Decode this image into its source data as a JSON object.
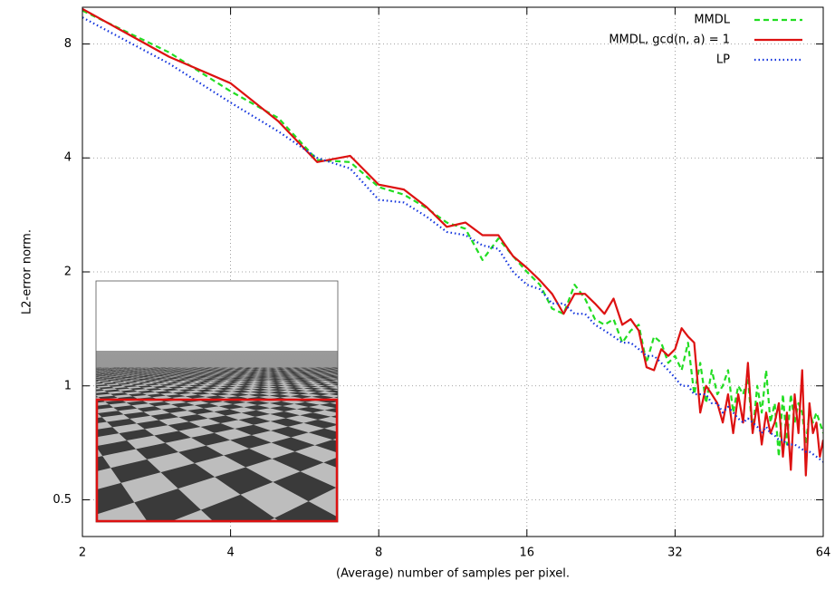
{
  "chart_data": {
    "type": "line",
    "xlabel": "(Average) number of samples per pixel.",
    "ylabel": "L2-error norm.",
    "xscale": "log",
    "yscale": "log",
    "grid": true,
    "legend": "upper right",
    "xlim": [
      2,
      64
    ],
    "xticks": [
      2,
      4,
      8,
      16,
      32,
      64
    ],
    "ylim": [
      0.4,
      10
    ],
    "yticks": [
      0.5,
      1,
      2,
      4,
      8
    ],
    "x": [
      2,
      3,
      4,
      5,
      6,
      7,
      8,
      9,
      10,
      11,
      12,
      13,
      14,
      15,
      16,
      17,
      18,
      19,
      20,
      21,
      22,
      23,
      24,
      25,
      26,
      27,
      28,
      29,
      30,
      31,
      32,
      33,
      34,
      35,
      36,
      37,
      38,
      39,
      40,
      41,
      42,
      43,
      44,
      45,
      46,
      47,
      48,
      49,
      50,
      51,
      52,
      53,
      54,
      55,
      56,
      57,
      58,
      59,
      60,
      61,
      62,
      63,
      64
    ],
    "series": [
      {
        "name": "MMDL",
        "color": "#22dd22",
        "dash": "6 4",
        "values": [
          9.8,
          7.6,
          6.0,
          5.1,
          3.95,
          3.9,
          3.35,
          3.2,
          2.95,
          2.7,
          2.6,
          2.15,
          2.45,
          2.2,
          2.0,
          1.85,
          1.6,
          1.55,
          1.85,
          1.7,
          1.5,
          1.45,
          1.5,
          1.3,
          1.4,
          1.45,
          1.15,
          1.35,
          1.3,
          1.15,
          1.2,
          1.1,
          1.3,
          0.95,
          1.15,
          0.9,
          1.1,
          0.95,
          1.0,
          1.1,
          0.85,
          1.0,
          0.95,
          1.05,
          0.75,
          1.0,
          0.85,
          1.1,
          0.8,
          0.9,
          0.65,
          0.95,
          0.7,
          0.95,
          0.8,
          0.9,
          0.85,
          0.7,
          0.85,
          0.8,
          0.85,
          0.8,
          0.75
        ]
      },
      {
        "name": "MMDL, gcd(n, a) = 1",
        "color": "#dd1111",
        "dash": "none",
        "values": [
          9.9,
          7.4,
          6.3,
          5.0,
          3.9,
          4.05,
          3.4,
          3.3,
          2.97,
          2.63,
          2.7,
          2.5,
          2.5,
          2.2,
          2.05,
          1.9,
          1.75,
          1.55,
          1.75,
          1.75,
          1.65,
          1.55,
          1.7,
          1.45,
          1.5,
          1.4,
          1.12,
          1.1,
          1.25,
          1.2,
          1.25,
          1.42,
          1.35,
          1.3,
          0.85,
          1.0,
          0.95,
          0.9,
          0.8,
          0.95,
          0.75,
          0.95,
          0.8,
          1.15,
          0.75,
          0.9,
          0.7,
          0.85,
          0.75,
          0.8,
          0.9,
          0.65,
          0.85,
          0.6,
          0.95,
          0.75,
          1.1,
          0.58,
          0.9,
          0.75,
          0.8,
          0.65,
          0.72
        ]
      },
      {
        "name": "LP",
        "color": "#1133dd",
        "dash": "1.5 3",
        "values": [
          9.4,
          7.1,
          5.6,
          4.7,
          4.0,
          3.75,
          3.1,
          3.05,
          2.8,
          2.55,
          2.5,
          2.35,
          2.3,
          2.0,
          1.85,
          1.8,
          1.65,
          1.65,
          1.55,
          1.55,
          1.45,
          1.4,
          1.35,
          1.3,
          1.3,
          1.25,
          1.2,
          1.2,
          1.15,
          1.1,
          1.05,
          1.0,
          1.0,
          0.95,
          0.95,
          0.95,
          0.9,
          0.9,
          0.85,
          0.88,
          0.85,
          0.82,
          0.8,
          0.82,
          0.8,
          0.78,
          0.75,
          0.78,
          0.75,
          0.74,
          0.72,
          0.72,
          0.7,
          0.7,
          0.7,
          0.69,
          0.68,
          0.67,
          0.67,
          0.66,
          0.65,
          0.64,
          0.63
        ]
      }
    ]
  }
}
